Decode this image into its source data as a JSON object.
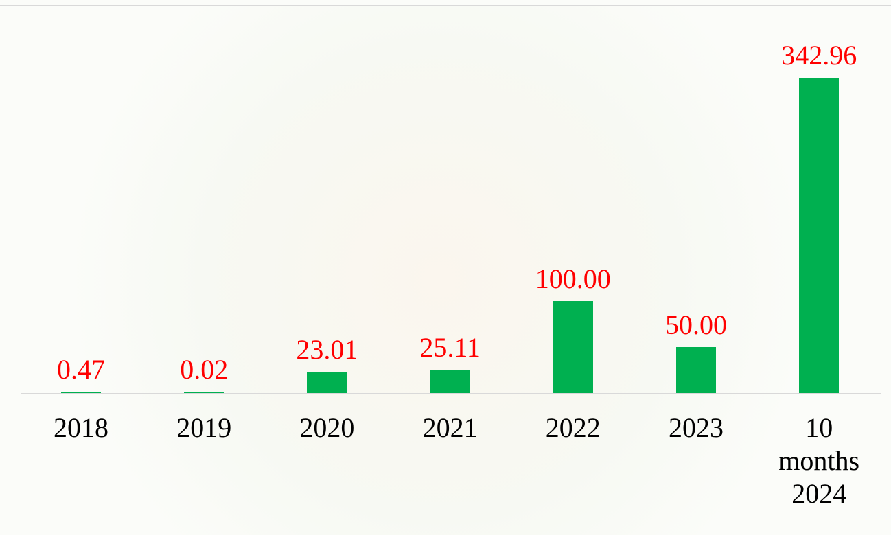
{
  "chart_data": {
    "type": "bar",
    "categories": [
      "2018",
      "2019",
      "2020",
      "2021",
      "2022",
      "2023",
      "10 months 2024"
    ],
    "values": [
      0.47,
      0.02,
      23.01,
      25.11,
      100,
      50,
      342.96
    ],
    "value_labels": [
      "0.47",
      "0.02",
      "23.01",
      "25.11",
      "100.00",
      "50.00",
      "342.96"
    ],
    "color": "#00b050",
    "label_color": "#ff0000"
  }
}
